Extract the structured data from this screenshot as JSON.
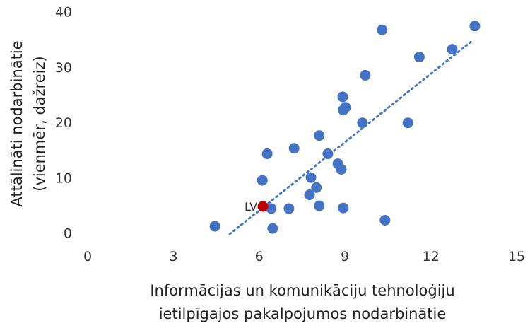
{
  "chart_data": {
    "type": "scatter",
    "x_label": [
      "Informācijas un komunikāciju tehnoloģiju",
      "ietilpīgajos pakalpojumos nodarbinātie"
    ],
    "y_label": [
      "Attālināti nodarbinātie",
      "(vienmēr, dažreiz)"
    ],
    "series": [
      {
        "color": "#4472c4",
        "x": [
          4.45,
          6.47,
          6.42,
          6.11,
          6.28,
          7.04,
          7.22,
          7.76,
          7.81,
          8.0,
          8.1,
          8.1,
          8.4,
          8.75,
          8.87,
          8.94,
          8.92,
          9.02,
          8.94,
          9.61,
          9.71,
          10.3,
          10.4,
          11.2,
          11.6,
          12.75,
          13.54
        ],
        "values": [
          1.4,
          1.0,
          4.6,
          9.7,
          14.5,
          4.6,
          15.5,
          7.1,
          10.2,
          8.4,
          5.1,
          17.8,
          14.5,
          12.7,
          11.7,
          4.7,
          24.8,
          22.9,
          22.4,
          20.1,
          28.7,
          36.9,
          2.5,
          20.1,
          32.0,
          33.4,
          37.6
        ]
      }
    ],
    "highlight": {
      "label": "LV",
      "x": 6.13,
      "y": 5.0,
      "color": "#c00000"
    },
    "trendline": {
      "x": [
        4.97,
        13.44
      ],
      "values": [
        0,
        34.9
      ],
      "color": "#4472c4"
    },
    "xlim": [
      0,
      15
    ],
    "xticks": [
      0,
      3,
      6,
      9,
      12,
      15
    ],
    "ylim": [
      0,
      40
    ],
    "yticks": [
      0,
      10,
      20,
      30,
      40
    ]
  }
}
